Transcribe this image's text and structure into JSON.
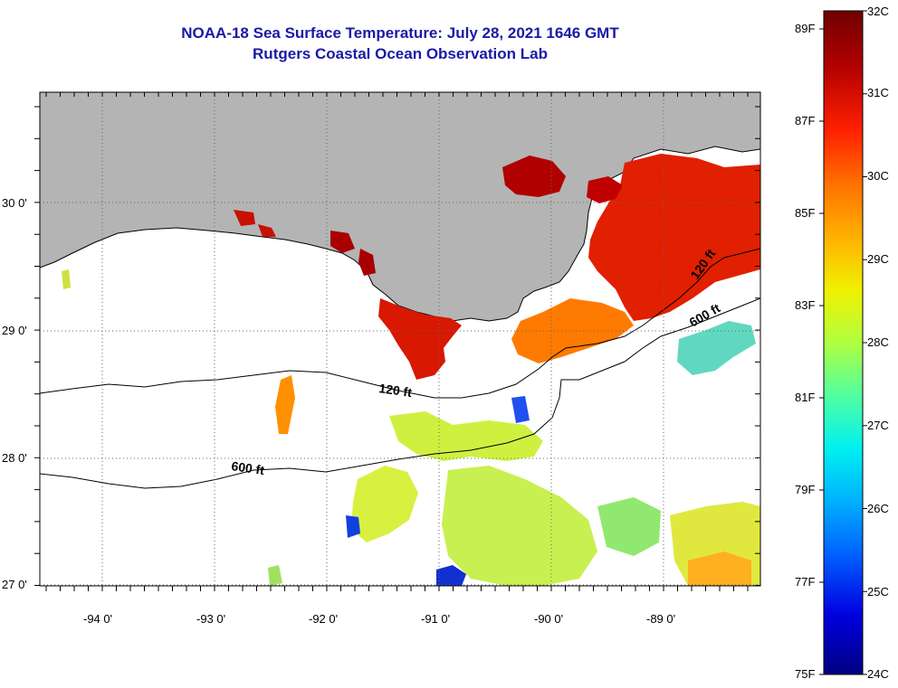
{
  "header": {
    "title": "NOAA-18 Sea Surface Temperature:  July 28, 2021 1646 GMT",
    "subtitle": "Rutgers Coastal Ocean Observation Lab"
  },
  "map": {
    "lat_labels": [
      "30 0'",
      "29 0'",
      "28 0'",
      "27 0'"
    ],
    "lon_labels": [
      "-94 0'",
      "-93 0'",
      "-92 0'",
      "-91 0'",
      "-90 0'",
      "-89 0'"
    ],
    "contour_labels": {
      "c120_west": "120 ft",
      "c120_east": "120 ft",
      "c600_west": "600 ft",
      "c600_east": "600 ft"
    }
  },
  "colorbar": {
    "fahrenheit": [
      "89F",
      "87F",
      "85F",
      "83F",
      "81F",
      "79F",
      "77F",
      "75F"
    ],
    "celsius": [
      "32C",
      "31C",
      "30C",
      "29C",
      "28C",
      "27C",
      "26C",
      "25C",
      "24C"
    ],
    "colors": {
      "c24": "#000080",
      "c25": "#0000ff",
      "c26": "#0080ff",
      "c27": "#00e0ff",
      "c28": "#60ffa0",
      "c29": "#e0ff20",
      "c30": "#ff9000",
      "c31": "#ff1000",
      "c32": "#800000"
    }
  },
  "colors": {
    "land": "#b4b4b4",
    "title": "#1a1aa6",
    "sst_red": "#d01800",
    "sst_darkred": "#b00000",
    "sst_orange": "#ff7000",
    "sst_yellow": "#d0ff40",
    "sst_cyan": "#60e0c0",
    "sst_blue": "#1040e0"
  }
}
